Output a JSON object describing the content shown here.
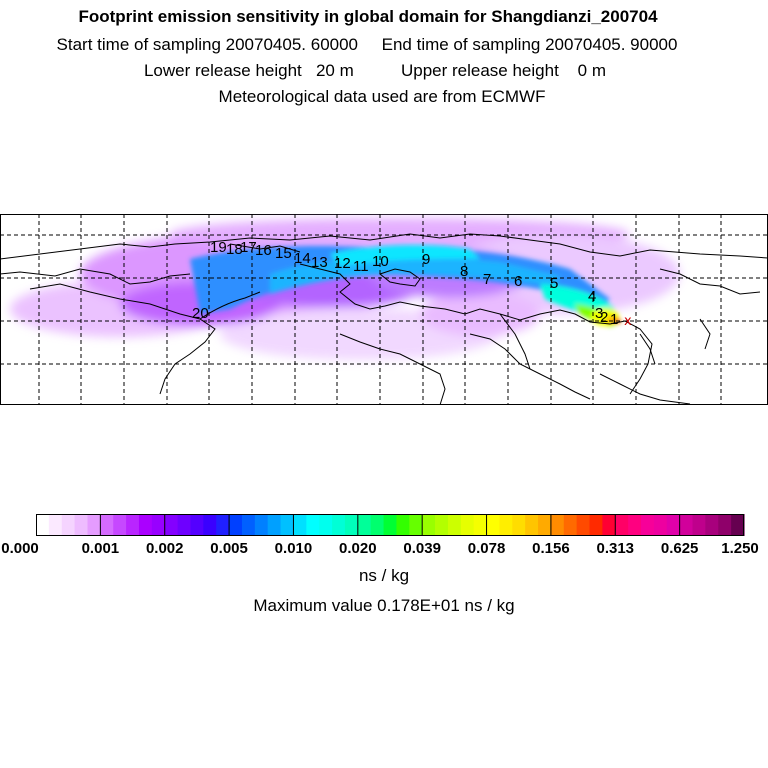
{
  "header": {
    "title": "Footprint emission sensitivity in global domain for Shangdianzi_200704",
    "line2": "Start time of sampling 20070405. 60000     End time of sampling 20070405. 90000",
    "line3": "Lower release height   20 m          Upper release height    0 m",
    "line4": "Meteorological data used are from ECMWF"
  },
  "map": {
    "grid_style": "dashed",
    "trajectory_labels": [
      "1",
      "2",
      "3",
      "4",
      "5",
      "6",
      "7",
      "8",
      "9",
      "10",
      "11",
      "12",
      "13",
      "14",
      "15",
      "16",
      "17",
      "18",
      "19",
      "20"
    ],
    "receptor_marker": "x"
  },
  "colorbar": {
    "tick_labels": [
      "0.000",
      "0.001",
      "0.002",
      "0.005",
      "0.010",
      "0.020",
      "0.039",
      "0.078",
      "0.156",
      "0.313",
      "0.625",
      "1.250"
    ],
    "segment_colors": [
      [
        "#ffffff",
        "#fbe9ff",
        "#f5d4ff",
        "#eebcff",
        "#e59cff"
      ],
      [
        "#d56bff",
        "#c648ff",
        "#b925ff",
        "#aa00ff",
        "#9800ff"
      ],
      [
        "#8400ff",
        "#6e00ff",
        "#5400ff",
        "#3a00ff",
        "#2020ff"
      ],
      [
        "#0040ff",
        "#0060ff",
        "#0080ff",
        "#00a0ff",
        "#00c0ff"
      ],
      [
        "#00e0ff",
        "#00ffff",
        "#00ffee",
        "#00ffd6",
        "#00ffbb"
      ],
      [
        "#00ff99",
        "#00ff6e",
        "#00ff33",
        "#33ff00",
        "#66ff00"
      ],
      [
        "#99ff00",
        "#b3ff00",
        "#ccff00",
        "#e6ff00",
        "#f5ff00"
      ],
      [
        "#ffff00",
        "#ffee00",
        "#ffdd00",
        "#ffc400",
        "#ffaa00"
      ],
      [
        "#ff8c00",
        "#ff6a00",
        "#ff4a00",
        "#ff2a00",
        "#ff0033"
      ],
      [
        "#ff0066",
        "#ff0080",
        "#f70099",
        "#ee00a0",
        "#e000aa"
      ],
      [
        "#d1009b",
        "#bf008c",
        "#a8007d",
        "#8f006a",
        "#660050"
      ]
    ],
    "units": "ns / kg",
    "maximum_text": "Maximum value  0.178E+01 ns / kg"
  }
}
